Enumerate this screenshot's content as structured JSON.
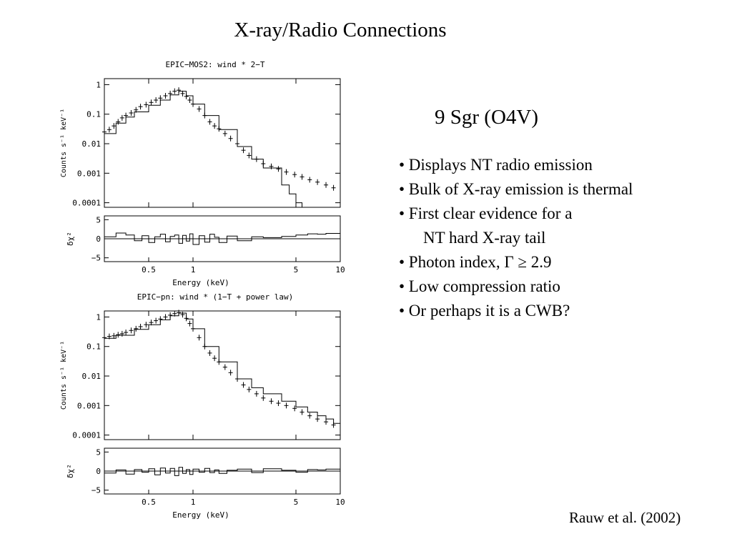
{
  "slide": {
    "title": "X-ray/Radio Connections",
    "star_name": "9 Sgr (O4V)",
    "bullets": [
      "• Displays NT radio emission",
      "• Bulk of X-ray emission is thermal",
      "• First clear evidence for a",
      "NT hard X-ray tail",
      "• Photon index, Γ ≥ 2.9",
      "• Low compression ratio",
      "• Or perhaps it is a CWB?"
    ],
    "citation": "Rauw et al. (2002)"
  },
  "chart_data": [
    {
      "type": "scatter",
      "title": "EPIC−MOS2: wind * 2−T",
      "xlabel": "Energy (keV)",
      "ylabel": "Counts s⁻¹ keV⁻¹",
      "resid_label": "δχ²",
      "xscale": "log",
      "yscale": "log",
      "xlim": [
        0.25,
        10
      ],
      "ylim": [
        7e-05,
        1.6
      ],
      "x_ticks": [
        0.5,
        1,
        5,
        10
      ],
      "x_tick_labels": [
        "0.5",
        "1",
        "5",
        "10"
      ],
      "y_ticks": [
        1,
        0.1,
        0.01,
        0.001,
        0.0001
      ],
      "y_tick_labels": [
        "1",
        "0.1",
        "0.01",
        "0.001",
        "0.0001"
      ],
      "resid_ylim": [
        -6,
        6
      ],
      "resid_ticks": [
        5,
        0,
        -5
      ],
      "resid_tick_labels": [
        "5",
        "0",
        "−5"
      ],
      "series": [
        {
          "x": [
            0.25,
            0.27,
            0.29,
            0.31,
            0.33,
            0.35,
            0.38,
            0.41,
            0.44,
            0.48,
            0.52,
            0.56,
            0.6,
            0.65,
            0.7,
            0.75,
            0.8,
            0.85,
            0.9,
            0.95,
            1.0,
            1.1,
            1.2,
            1.3,
            1.4,
            1.5,
            1.65,
            1.8,
            2.0,
            2.2,
            2.4,
            2.7,
            3.0,
            3.4,
            3.8,
            4.3,
            4.9,
            5.5,
            6.2,
            7.0,
            8.0,
            9.0
          ],
          "y": [
            0.025,
            0.03,
            0.04,
            0.055,
            0.075,
            0.09,
            0.11,
            0.14,
            0.18,
            0.21,
            0.25,
            0.3,
            0.35,
            0.42,
            0.5,
            0.6,
            0.65,
            0.5,
            0.4,
            0.3,
            0.22,
            0.15,
            0.09,
            0.055,
            0.04,
            0.032,
            0.022,
            0.015,
            0.01,
            0.006,
            0.004,
            0.003,
            0.0021,
            0.0017,
            0.0014,
            0.0011,
            0.0009,
            0.00075,
            0.0006,
            0.0005,
            0.0004,
            0.00032
          ]
        }
      ],
      "model": {
        "x": [
          0.25,
          0.3,
          0.35,
          0.4,
          0.5,
          0.6,
          0.7,
          0.8,
          0.9,
          1.0,
          1.2,
          1.5,
          2.0,
          2.5,
          3.0,
          4.0,
          4.5,
          5.0,
          5.5
        ],
        "y": [
          0.022,
          0.05,
          0.08,
          0.12,
          0.2,
          0.3,
          0.45,
          0.6,
          0.42,
          0.22,
          0.09,
          0.03,
          0.008,
          0.003,
          0.0015,
          0.0004,
          0.0002,
          0.0001,
          5e-05
        ]
      },
      "residuals": {
        "x": [
          0.25,
          0.3,
          0.35,
          0.4,
          0.45,
          0.5,
          0.55,
          0.6,
          0.65,
          0.7,
          0.75,
          0.8,
          0.85,
          0.9,
          0.95,
          1.0,
          1.1,
          1.2,
          1.3,
          1.4,
          1.5,
          1.7,
          2.0,
          2.5,
          3.0,
          4.0,
          5.0,
          6.0,
          7.0,
          8.0,
          10.0
        ],
        "y": [
          0.5,
          1.5,
          1.0,
          -0.5,
          0.8,
          -1.0,
          0.5,
          1.2,
          -0.8,
          0.6,
          1.0,
          -1.2,
          0.9,
          -0.6,
          1.3,
          -1.5,
          0.8,
          -0.9,
          1.2,
          0.4,
          -1.0,
          0.7,
          -0.5,
          0.5,
          0.3,
          0.6,
          1.0,
          1.3,
          1.2,
          1.4,
          1.3
        ]
      }
    },
    {
      "type": "scatter",
      "title": "EPIC−pn: wind * (1−T + power law)",
      "xlabel": "Energy (keV)",
      "ylabel": "Counts s⁻¹ keV⁻¹",
      "resid_label": "δχ²",
      "xscale": "log",
      "yscale": "log",
      "xlim": [
        0.25,
        10
      ],
      "ylim": [
        7e-05,
        1.6
      ],
      "x_ticks": [
        0.5,
        1,
        5,
        10
      ],
      "x_tick_labels": [
        "0.5",
        "1",
        "5",
        "10"
      ],
      "y_ticks": [
        1,
        0.1,
        0.01,
        0.001,
        0.0001
      ],
      "y_tick_labels": [
        "1",
        "0.1",
        "0.01",
        "0.001",
        "0.0001"
      ],
      "resid_ylim": [
        -6,
        6
      ],
      "resid_ticks": [
        5,
        0,
        -5
      ],
      "resid_tick_labels": [
        "5",
        "0",
        "−5"
      ],
      "series": [
        {
          "x": [
            0.25,
            0.27,
            0.29,
            0.31,
            0.33,
            0.35,
            0.38,
            0.41,
            0.44,
            0.48,
            0.52,
            0.56,
            0.6,
            0.65,
            0.7,
            0.75,
            0.8,
            0.85,
            0.9,
            0.95,
            1.0,
            1.1,
            1.2,
            1.3,
            1.4,
            1.5,
            1.65,
            1.8,
            2.0,
            2.2,
            2.4,
            2.7,
            3.0,
            3.4,
            3.8,
            4.3,
            4.9,
            5.5,
            6.2,
            7.0,
            8.0,
            9.0
          ],
          "y": [
            0.2,
            0.22,
            0.23,
            0.25,
            0.27,
            0.3,
            0.35,
            0.4,
            0.47,
            0.55,
            0.65,
            0.75,
            0.85,
            1.0,
            1.15,
            1.3,
            1.4,
            1.2,
            0.9,
            0.6,
            0.4,
            0.2,
            0.1,
            0.06,
            0.04,
            0.03,
            0.02,
            0.013,
            0.008,
            0.005,
            0.0035,
            0.0025,
            0.0018,
            0.0014,
            0.0012,
            0.001,
            0.0008,
            0.0006,
            0.00045,
            0.00035,
            0.00028,
            0.00022
          ]
        }
      ],
      "model": {
        "x": [
          0.25,
          0.3,
          0.4,
          0.5,
          0.6,
          0.7,
          0.8,
          0.9,
          1.0,
          1.2,
          1.5,
          2.0,
          2.5,
          3.0,
          4.0,
          5.0,
          6.0,
          7.0,
          8.0,
          9.0,
          10.0
        ],
        "y": [
          0.19,
          0.24,
          0.38,
          0.55,
          0.8,
          1.1,
          1.35,
          0.85,
          0.4,
          0.1,
          0.03,
          0.008,
          0.004,
          0.0025,
          0.0014,
          0.0009,
          0.0006,
          0.00045,
          0.00035,
          0.00025,
          0.00015
        ]
      },
      "residuals": {
        "x": [
          0.25,
          0.3,
          0.35,
          0.4,
          0.45,
          0.5,
          0.55,
          0.6,
          0.65,
          0.7,
          0.75,
          0.8,
          0.85,
          0.9,
          0.95,
          1.0,
          1.1,
          1.2,
          1.3,
          1.4,
          1.5,
          1.7,
          2.0,
          2.5,
          3.0,
          4.0,
          5.0,
          6.0,
          7.0,
          8.0,
          10.0
        ],
        "y": [
          -0.5,
          0.3,
          -0.8,
          0.4,
          -0.3,
          0.6,
          -1.0,
          0.8,
          -0.5,
          0.7,
          -1.2,
          1.0,
          -0.6,
          0.4,
          -0.9,
          0.5,
          -0.3,
          0.7,
          -0.4,
          0.3,
          -0.6,
          0.2,
          0.5,
          -0.4,
          0.6,
          0.2,
          -0.3,
          0.4,
          0.3,
          0.5,
          0.2
        ]
      }
    }
  ]
}
